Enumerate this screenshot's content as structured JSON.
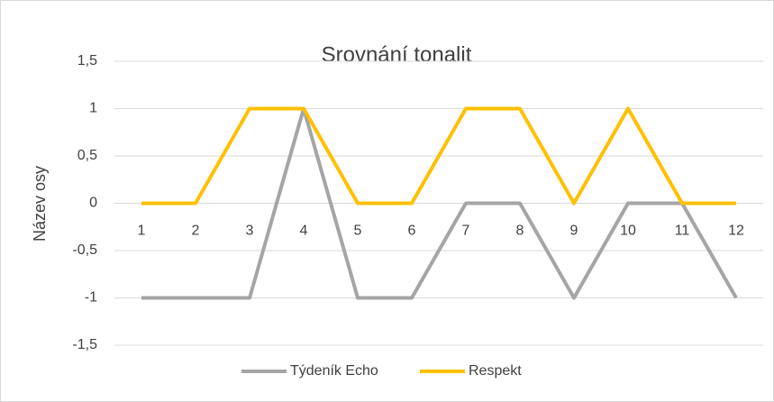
{
  "chart_data": {
    "type": "line",
    "title": "Srovnání tonalit",
    "y_label": "Název osy",
    "categories": [
      "1",
      "2",
      "3",
      "4",
      "5",
      "6",
      "7",
      "8",
      "9",
      "10",
      "11",
      "12"
    ],
    "series": [
      {
        "name": "Týdeník Echo",
        "color": "#a5a5a5",
        "values": [
          -1,
          -1,
          -1,
          1,
          -1,
          -1,
          0,
          0,
          -1,
          0,
          0,
          -1
        ]
      },
      {
        "name": "Respekt",
        "color": "#ffc000",
        "values": [
          0,
          0,
          1,
          1,
          0,
          0,
          1,
          1,
          0,
          1,
          0,
          0
        ]
      }
    ],
    "ylim": [
      -1.5,
      1.5
    ],
    "yticks": [
      {
        "value": -1.5,
        "label": "-1,5"
      },
      -1,
      {
        "value": -0.5,
        "label": "-0,5"
      },
      0,
      {
        "value": 0.5,
        "label": "0,5"
      },
      1,
      {
        "value": 1.5,
        "label": "1,5"
      }
    ],
    "grid": true,
    "legend": "bottom"
  }
}
